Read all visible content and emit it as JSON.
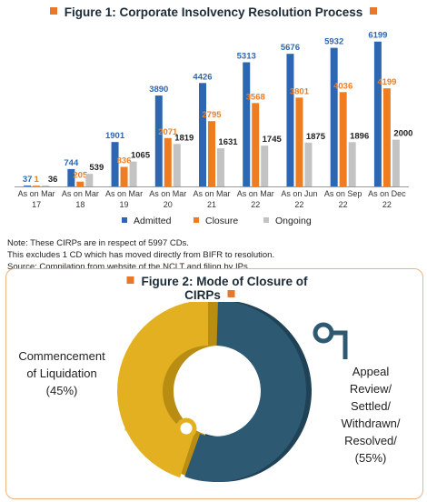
{
  "figure1": {
    "title": "Figure 1: Corporate Insolvency Resolution Process",
    "chart_data": {
      "type": "bar",
      "categories": [
        [
          "As on Mar",
          "17"
        ],
        [
          "As on Mar",
          "18"
        ],
        [
          "As on Mar",
          "19"
        ],
        [
          "As on Mar",
          "20"
        ],
        [
          "As on Mar",
          "21"
        ],
        [
          "As on Mar",
          "22"
        ],
        [
          "As on Jun",
          "22"
        ],
        [
          "As on Sep",
          "22"
        ],
        [
          "As on Dec",
          "22"
        ]
      ],
      "series": [
        {
          "name": "Admitted",
          "color": "#2e67b1",
          "values": [
            37,
            744,
            1901,
            3890,
            4426,
            5313,
            5676,
            5932,
            6199
          ]
        },
        {
          "name": "Closure",
          "color": "#ee7d22",
          "values": [
            1,
            205,
            836,
            2071,
            2795,
            3568,
            3801,
            4036,
            4199
          ]
        },
        {
          "name": "Ongoing",
          "color": "#c3c3c3",
          "values": [
            36,
            539,
            1065,
            1819,
            1631,
            1745,
            1875,
            1896,
            2000
          ]
        }
      ],
      "ylim": [
        0,
        6500
      ],
      "grid": false,
      "legend": "bottom"
    },
    "notes": [
      "Note: These CIRPs are in respect of 5997 CDs.",
      "This excludes 1 CD which has moved directly from BIFR to resolution.",
      "Source: Compilation from website of the NCLT and filing by IPs."
    ]
  },
  "figure2": {
    "title": "Figure 2: Mode of Closure of CIRPs",
    "chart_data": {
      "type": "pie",
      "slices": [
        {
          "label": [
            "Commencement",
            "of Liquidation",
            "(45%)"
          ],
          "value": 45,
          "color": "#e3b021"
        },
        {
          "label": [
            "Appeal",
            "Review/",
            "Settled/",
            "Withdrawn/",
            "Resolved/",
            "(55%)"
          ],
          "value": 55,
          "color": "#2d5a72"
        }
      ]
    }
  }
}
